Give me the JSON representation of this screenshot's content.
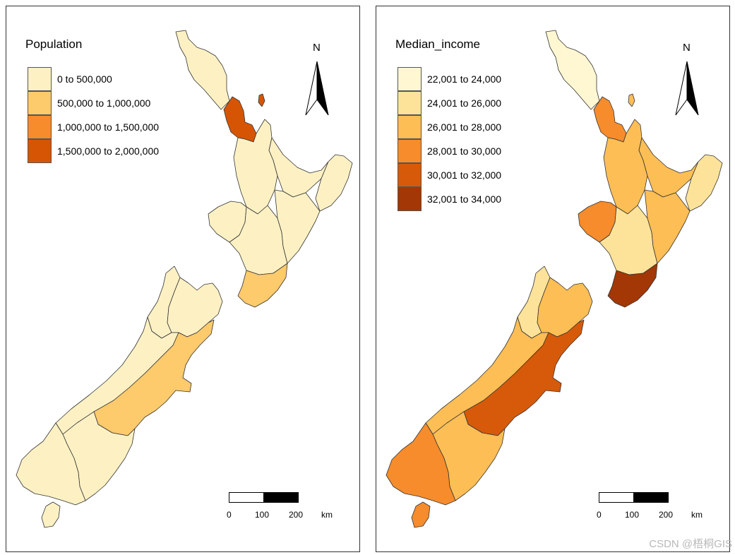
{
  "north_label": "N",
  "scale": {
    "ticks": [
      "0",
      "100",
      "200"
    ],
    "unit": "km"
  },
  "maps": [
    {
      "title": "Population",
      "legend": [
        {
          "label": "0 to 500,000",
          "color": "#fdf1c4"
        },
        {
          "label": "500,000 to 1,000,000",
          "color": "#fdca6c"
        },
        {
          "label": "1,000,000 to 1,500,000",
          "color": "#f68c2b"
        },
        {
          "label": "1,500,000 to 2,000,000",
          "color": "#d65505"
        }
      ]
    },
    {
      "title": "Median_income",
      "legend": [
        {
          "label": "22,001 to 24,000",
          "color": "#fff7d2"
        },
        {
          "label": "24,001 to 26,000",
          "color": "#fde39a"
        },
        {
          "label": "26,001 to 28,000",
          "color": "#fdbe55"
        },
        {
          "label": "28,001 to 30,000",
          "color": "#f68c2b"
        },
        {
          "label": "30,001 to 32,000",
          "color": "#d65a0a"
        },
        {
          "label": "32,001 to 34,000",
          "color": "#a33705"
        }
      ]
    }
  ],
  "watermark": "CSDN @梧桐GIS"
}
